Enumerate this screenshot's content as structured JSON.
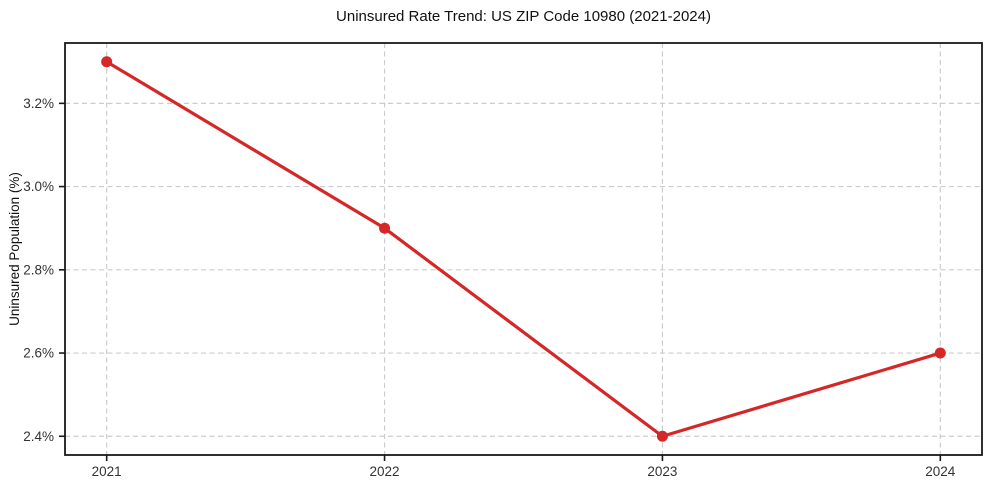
{
  "chart_data": {
    "type": "line",
    "title": "Uninsured Rate Trend: US ZIP Code 10980 (2021-2024)",
    "xlabel": "",
    "ylabel": "Uninsured Population (%)",
    "categories": [
      2021,
      2022,
      2023,
      2024
    ],
    "values": [
      3.3,
      2.9,
      2.4,
      2.6
    ],
    "xtick_labels": [
      "2021",
      "2022",
      "2023",
      "2024"
    ],
    "yticks": [
      2.4,
      2.6,
      2.8,
      3.0,
      3.2
    ],
    "ytick_labels": [
      "2.4%",
      "2.6%",
      "2.8%",
      "3.0%",
      "3.2%"
    ],
    "xlim": [
      2020.85,
      2024.15
    ],
    "ylim": [
      2.355,
      3.345
    ],
    "grid": true,
    "grid_style": "dashed",
    "legend": "none",
    "colors": {
      "line": "#d62728",
      "marker": "#d62728",
      "grid": "#cccccc",
      "spine": "#1a1a1a",
      "tick_label": "#333333",
      "title": "#111111"
    }
  }
}
